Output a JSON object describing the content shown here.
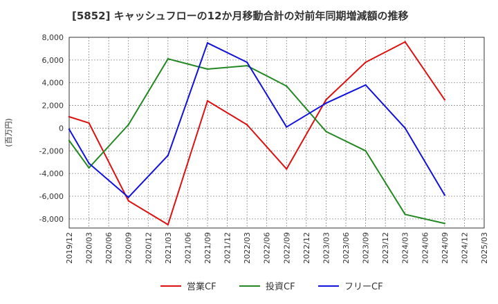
{
  "chart_data": {
    "type": "line",
    "title": "[5852]  キャッシュフローの12か月移動合計の対前年同期増減額の推移",
    "ylabel": "(百万円)",
    "xlabel": "",
    "ylim": [
      -8800,
      8000
    ],
    "yticks": [
      8000,
      6000,
      4000,
      2000,
      0,
      -2000,
      -4000,
      -6000,
      -8000
    ],
    "ytick_labels": [
      "8,000",
      "6,000",
      "4,000",
      "2,000",
      "0",
      "-2,000",
      "-4,000",
      "-6,000",
      "-8,000"
    ],
    "categories": [
      "2019/12",
      "2020/03",
      "2020/06",
      "2020/09",
      "2020/12",
      "2021/03",
      "2021/06",
      "2021/09",
      "2021/12",
      "2022/03",
      "2022/06",
      "2022/09",
      "2022/12",
      "2023/03",
      "2023/06",
      "2023/09",
      "2023/12",
      "2024/03",
      "2024/06",
      "2024/09",
      "2024/12",
      "2025/03"
    ],
    "grid": true,
    "legend_position": "bottom",
    "series": [
      {
        "name": "営業CF",
        "color": "#dd1111",
        "points": [
          {
            "x": "2019/12",
            "y": 1000
          },
          {
            "x": "2020/03",
            "y": 450
          },
          {
            "x": "2020/09",
            "y": -6400
          },
          {
            "x": "2021/03",
            "y": -8500
          },
          {
            "x": "2021/09",
            "y": 2400
          },
          {
            "x": "2022/03",
            "y": 300
          },
          {
            "x": "2022/09",
            "y": -3600
          },
          {
            "x": "2023/03",
            "y": 2500
          },
          {
            "x": "2023/09",
            "y": 5800
          },
          {
            "x": "2024/03",
            "y": 7600
          },
          {
            "x": "2024/09",
            "y": 2500
          }
        ]
      },
      {
        "name": "投資CF",
        "color": "#228822",
        "points": [
          {
            "x": "2019/12",
            "y": -1100
          },
          {
            "x": "2020/03",
            "y": -3500
          },
          {
            "x": "2020/09",
            "y": 300
          },
          {
            "x": "2021/03",
            "y": 6100
          },
          {
            "x": "2021/09",
            "y": 5200
          },
          {
            "x": "2022/03",
            "y": 5500
          },
          {
            "x": "2022/09",
            "y": 3700
          },
          {
            "x": "2023/03",
            "y": -300
          },
          {
            "x": "2023/09",
            "y": -2000
          },
          {
            "x": "2024/03",
            "y": -7600
          },
          {
            "x": "2024/09",
            "y": -8400
          }
        ]
      },
      {
        "name": "フリーCF",
        "color": "#1111dd",
        "points": [
          {
            "x": "2019/12",
            "y": -100
          },
          {
            "x": "2020/03",
            "y": -3100
          },
          {
            "x": "2020/09",
            "y": -6100
          },
          {
            "x": "2021/03",
            "y": -2400
          },
          {
            "x": "2021/09",
            "y": 7500
          },
          {
            "x": "2022/03",
            "y": 5800
          },
          {
            "x": "2022/09",
            "y": 100
          },
          {
            "x": "2023/03",
            "y": 2200
          },
          {
            "x": "2023/09",
            "y": 3800
          },
          {
            "x": "2024/03",
            "y": 0
          },
          {
            "x": "2024/09",
            "y": -5900
          }
        ]
      }
    ]
  }
}
